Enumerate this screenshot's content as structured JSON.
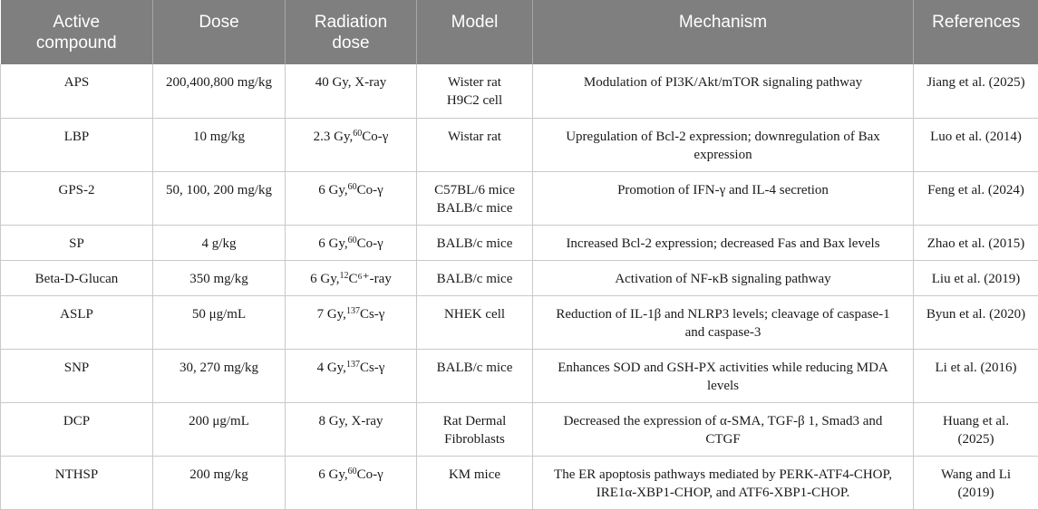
{
  "headers": [
    "Active\ncompound",
    "Dose",
    "Radiation\ndose",
    "Model",
    "Mechanism",
    "References"
  ],
  "rows": [
    {
      "compound": "APS",
      "dose": "200,400,800 mg/kg",
      "rad_pre": "40 Gy, X-ray",
      "rad_sup": "",
      "rad_post": "",
      "model": "Wister rat\nH9C2 cell",
      "mechanism": "Modulation of PI3K/Akt/mTOR signaling pathway",
      "ref": "Jiang et al. (2025)"
    },
    {
      "compound": "LBP",
      "dose": "10 mg/kg",
      "rad_pre": "2.3 Gy,",
      "rad_sup": "60",
      "rad_post": "Co-γ",
      "model": "Wistar rat",
      "mechanism": "Upregulation of Bcl-2 expression; downregulation of Bax\nexpression",
      "ref": "Luo et al. (2014)"
    },
    {
      "compound": "GPS-2",
      "dose": "50, 100, 200 mg/kg",
      "rad_pre": "6 Gy,",
      "rad_sup": "60",
      "rad_post": "Co-γ",
      "model": "C57BL/6 mice\nBALB/c mice",
      "mechanism": "Promotion of IFN-γ and IL-4 secretion",
      "ref": "Feng et al. (2024)"
    },
    {
      "compound": "SP",
      "dose": "4 g/kg",
      "rad_pre": "6 Gy,",
      "rad_sup": "60",
      "rad_post": "Co-γ",
      "model": "BALB/c mice",
      "mechanism": "Increased Bcl-2 expression; decreased Fas and Bax levels",
      "ref": "Zhao et al. (2015)"
    },
    {
      "compound": "Beta-D-Glucan",
      "dose": "350 mg/kg",
      "rad_pre": "6 Gy,",
      "rad_sup": "12",
      "rad_post": "C⁶⁺-ray",
      "model": "BALB/c mice",
      "mechanism": "Activation of NF-κB signaling pathway",
      "ref": "Liu et al. (2019)"
    },
    {
      "compound": "ASLP",
      "dose": "50 μg/mL",
      "rad_pre": "7 Gy,",
      "rad_sup": "137",
      "rad_post": "Cs-γ",
      "model": "NHEK cell",
      "mechanism": "Reduction of IL-1β and NLRP3 levels; cleavage of caspase-1\nand caspase-3",
      "ref": "Byun et al. (2020)"
    },
    {
      "compound": "SNP",
      "dose": "30, 270 mg/kg",
      "rad_pre": "4 Gy,",
      "rad_sup": "137",
      "rad_post": "Cs-γ",
      "model": "BALB/c mice",
      "mechanism": "Enhances SOD and GSH-PX activities while reducing MDA\nlevels",
      "ref": "Li et al. (2016)"
    },
    {
      "compound": "DCP",
      "dose": "200 μg/mL",
      "rad_pre": "8 Gy, X-ray",
      "rad_sup": "",
      "rad_post": "",
      "model": "Rat Dermal\nFibroblasts",
      "mechanism": "Decreased the expression of α-SMA, TGF-β 1, Smad3 and\nCTGF",
      "ref": "Huang et al.\n(2025)"
    },
    {
      "compound": "NTHSP",
      "dose": "200 mg/kg",
      "rad_pre": "6 Gy,",
      "rad_sup": "60",
      "rad_post": "Co-γ",
      "model": "KM mice",
      "mechanism": "The ER apoptosis pathways mediated by PERK-ATF4-CHOP,\nIRE1α-XBP1-CHOP, and ATF6-XBP1-CHOP.",
      "ref": "Wang and Li\n(2019)"
    }
  ]
}
